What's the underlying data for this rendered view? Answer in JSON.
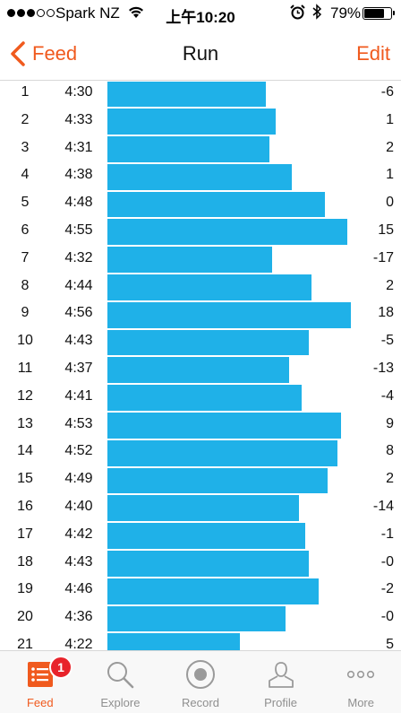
{
  "status": {
    "carrier": "Spark NZ",
    "time": "上午10:20",
    "battery_pct": "79%",
    "battery_level": 0.79,
    "signal_bars_filled": 3,
    "signal_bars_total": 5,
    "icons": [
      "wifi-icon",
      "alarm-icon",
      "bluetooth-icon",
      "battery-icon"
    ]
  },
  "nav": {
    "back_label": "Feed",
    "title": "Run",
    "edit_label": "Edit"
  },
  "colors": {
    "accent": "#f05a1e",
    "bar": "#1fb1e8",
    "badge": "#e8232b"
  },
  "chart_data": {
    "type": "bar",
    "columns": [
      "split",
      "pace",
      "elevation"
    ],
    "categories": [
      "1",
      "2",
      "3",
      "4",
      "5",
      "6",
      "7",
      "8",
      "9",
      "10",
      "11",
      "12",
      "13",
      "14",
      "15",
      "16",
      "17",
      "18",
      "19",
      "20",
      "21"
    ],
    "pace": [
      "4:30",
      "4:33",
      "4:31",
      "4:38",
      "4:48",
      "4:55",
      "4:32",
      "4:44",
      "4:56",
      "4:43",
      "4:37",
      "4:41",
      "4:53",
      "4:52",
      "4:49",
      "4:40",
      "4:42",
      "4:43",
      "4:46",
      "4:36",
      "4:22"
    ],
    "elevation": [
      "-6",
      "1",
      "2",
      "1",
      "0",
      "15",
      "-17",
      "2",
      "18",
      "-5",
      "-13",
      "-4",
      "9",
      "8",
      "2",
      "-14",
      "-1",
      "-0",
      "-2",
      "-0",
      "5"
    ]
  },
  "tabs": [
    {
      "label": "Feed",
      "icon": "feed-icon",
      "active": true,
      "badge": "1"
    },
    {
      "label": "Explore",
      "icon": "explore-icon",
      "active": false
    },
    {
      "label": "Record",
      "icon": "record-icon",
      "active": false
    },
    {
      "label": "Profile",
      "icon": "profile-icon",
      "active": false
    },
    {
      "label": "More",
      "icon": "more-icon",
      "active": false
    }
  ]
}
